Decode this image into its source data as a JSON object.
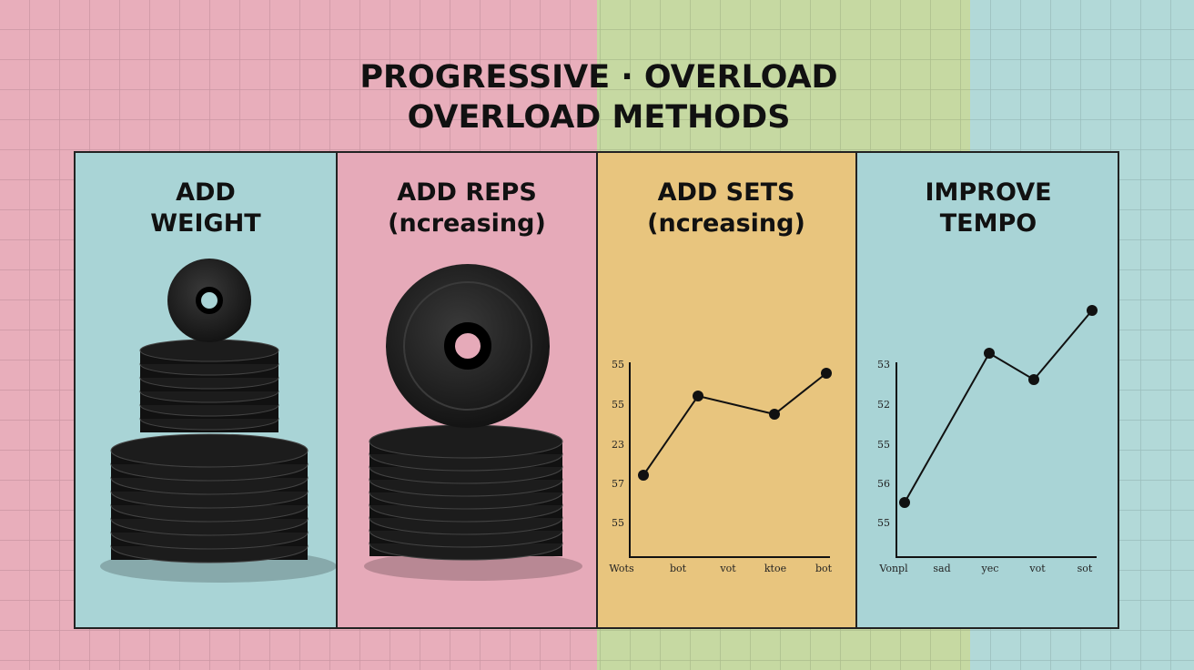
{
  "header": {
    "lines": [
      "PROGRESSIVE · OVERLOAD",
      "OVERLOAD METHODS"
    ]
  },
  "panels": [
    {
      "heading": [
        "ADD",
        "WEIGHT"
      ]
    },
    {
      "heading": [
        "ADD REPS",
        "(ncreasing)"
      ]
    },
    {
      "heading": [
        "ADD SETS",
        "(ncreasing)"
      ],
      "chart": {
        "y_labels": [
          "55",
          "55",
          "23",
          "57",
          "55"
        ],
        "x_labels": [
          "Wots",
          "bot",
          "vot",
          "ktoe",
          "bot"
        ]
      }
    },
    {
      "heading": [
        "IMPROVE",
        "TEMPO"
      ],
      "chart": {
        "y_labels": [
          "53",
          "52",
          "55",
          "56",
          "55"
        ],
        "x_labels": [
          "Vonpl",
          "sad",
          "yec",
          "vot",
          "sot"
        ]
      }
    }
  ]
}
